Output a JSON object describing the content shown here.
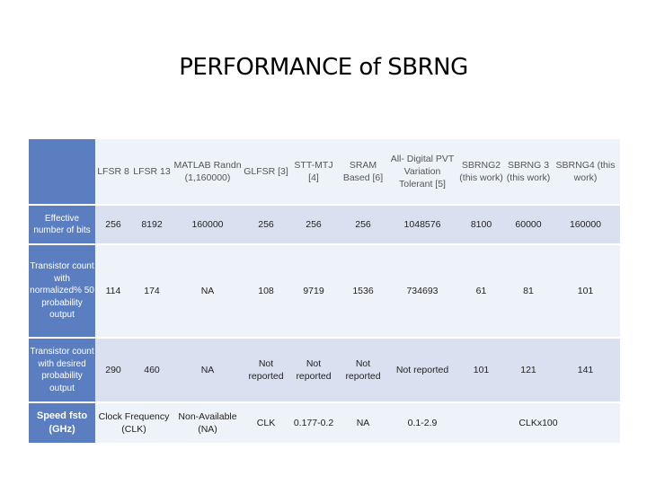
{
  "title": "PERFORMANCE of SBRNG",
  "table": {
    "header": [
      "",
      "LFSR 8",
      "LFSR 13",
      "MATLAB Randn (1,160000)",
      "GLFSR [3]",
      "STT-MTJ [4]",
      "SRAM Based [6]",
      "All- Digital PVT Variation Tolerant [5]",
      "SBRNG2 (this work)",
      "SBRNG 3 (this work)",
      "SBRNG4 (this work)"
    ],
    "rows": [
      {
        "label": "Effective number of bits",
        "cells": [
          "256",
          "8192",
          "160000",
          "256",
          "256",
          "256",
          "1048576",
          "8100",
          "60000",
          "160000"
        ]
      },
      {
        "label": "Transistor count with normalized% 50 probability output",
        "cells": [
          "114",
          "174",
          "NA",
          "108",
          "9719",
          "1536",
          "734693",
          "61",
          "81",
          "101"
        ]
      },
      {
        "label": "Transistor count with desired probability output",
        "cells": [
          "290",
          "460",
          "NA",
          "Not reported",
          "Not reported",
          "Not reported",
          "Not reported",
          "101",
          "121",
          "141"
        ]
      }
    ],
    "speed_row": {
      "label": "Speed fsto (GHz)",
      "cells": [
        "Clock Frequency (CLK)",
        "Non-Available (NA)",
        "CLK",
        "0.177-0.2",
        "NA",
        "0.1-2.9",
        "CLKx100"
      ]
    }
  }
}
